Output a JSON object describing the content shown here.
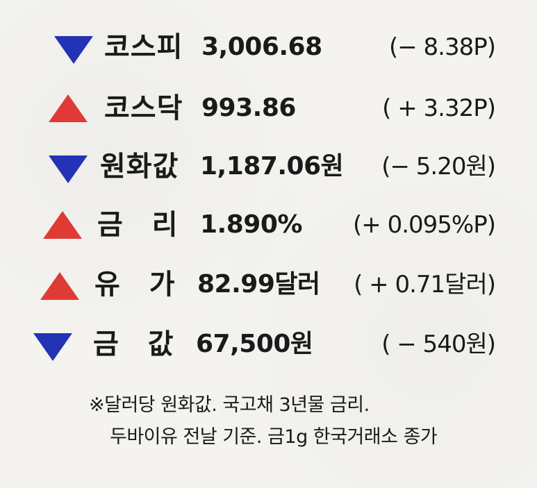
{
  "rows": [
    {
      "name": "코스피",
      "value": "3,006.68",
      "change": "(− 8.38P)",
      "direction": "down"
    },
    {
      "name": "코스닥",
      "value": "993.86",
      "change": "( + 3.32P)",
      "direction": "up"
    },
    {
      "name": "원화값",
      "value": "1,187.06원",
      "change": "(− 5.20원)",
      "direction": "down"
    },
    {
      "name": "금　리",
      "value": "1.890%",
      "change": "(+ 0.095%P)",
      "direction": "up"
    },
    {
      "name": "유　가",
      "value": "82.99달러",
      "change": "( + 0.71달러)",
      "direction": "up"
    },
    {
      "name": "금　값",
      "value": "67,500원",
      "change": "( − 540원)",
      "direction": "down"
    }
  ],
  "footnote": {
    "line1": "※달러당 원화값. 국고채 3년물 금리.",
    "line2": "두바이유 전날 기준. 금1g 한국거래소 종가"
  },
  "colors": {
    "up": "#e03a35",
    "down": "#2433b5",
    "paper": "#f4f3ef"
  }
}
